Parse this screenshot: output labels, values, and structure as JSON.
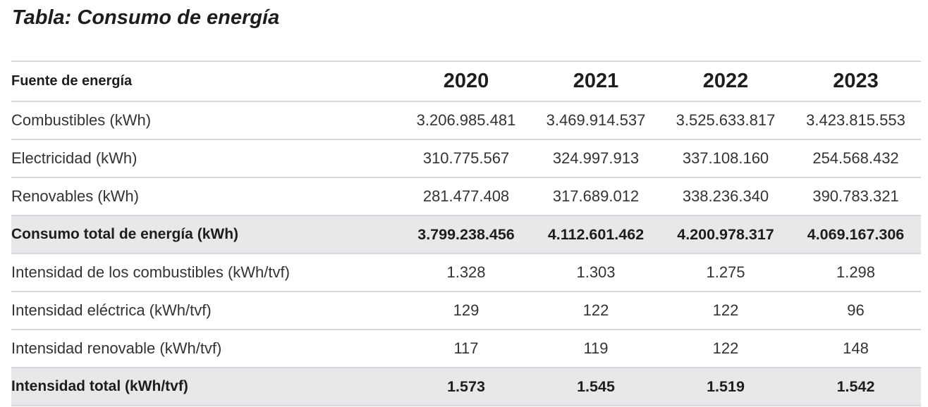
{
  "title": "Tabla: Consumo de energía",
  "table": {
    "header": {
      "label": "Fuente de energía",
      "years": [
        "2020",
        "2021",
        "2022",
        "2023"
      ]
    },
    "rows": [
      {
        "label": "Combustibles (kWh)",
        "values": [
          "3.206.985.481",
          "3.469.914.537",
          "3.525.633.817",
          "3.423.815.553"
        ],
        "total": false
      },
      {
        "label": "Electricidad (kWh)",
        "values": [
          "310.775.567",
          "324.997.913",
          "337.108.160",
          "254.568.432"
        ],
        "total": false
      },
      {
        "label": "Renovables (kWh)",
        "values": [
          "281.477.408",
          "317.689.012",
          "338.236.340",
          "390.783.321"
        ],
        "total": false
      },
      {
        "label": "Consumo total de energía (kWh)",
        "values": [
          "3.799.238.456",
          "4.112.601.462",
          "4.200.978.317",
          "4.069.167.306"
        ],
        "total": true
      },
      {
        "label": "Intensidad de los combustibles (kWh/tvf)",
        "values": [
          "1.328",
          "1.303",
          "1.275",
          "1.298"
        ],
        "total": false
      },
      {
        "label": "Intensidad eléctrica (kWh/tvf)",
        "values": [
          "129",
          "122",
          "122",
          "96"
        ],
        "total": false
      },
      {
        "label": "Intensidad renovable (kWh/tvf)",
        "values": [
          "117",
          "119",
          "122",
          "148"
        ],
        "total": false
      },
      {
        "label": "Intensidad total (kWh/tvf)",
        "values": [
          "1.573",
          "1.545",
          "1.519",
          "1.542"
        ],
        "total": true
      }
    ]
  },
  "colors": {
    "total_row_background": "#e6e8ea",
    "rule": "#d5d8dc",
    "text": "#1d1d1d"
  }
}
